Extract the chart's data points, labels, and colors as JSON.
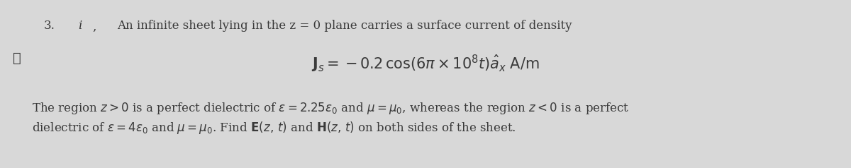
{
  "bg_color": "#d8d8d8",
  "fig_width": 12.0,
  "fig_height": 2.38,
  "dpi": 100,
  "problem_number": "3.",
  "problem_label": "i",
  "left_mark": "✓",
  "line1": "An infinite sheet lying in the z = 0 plane carries a surface current of density",
  "line3_part1": "The region z > 0 is a perfect dielectric of ε = 2.25ε",
  "line3_part2": " and μ = μ",
  "line3_part3": ", whereas the region z < 0 is a perfect",
  "line4_part1": "dielectric of ε = 4ε",
  "line4_part2": " and μ = μ",
  "line4_part3": ". Find E(z, t) and H(z, t) on both sides of the sheet.",
  "font_size_main": 12,
  "font_size_eq": 14,
  "text_color": "#3a3a3a"
}
